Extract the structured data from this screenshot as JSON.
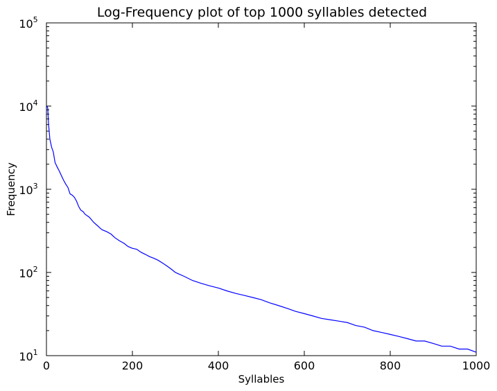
{
  "chart_data": {
    "type": "line",
    "title": "Log-Frequency plot of top 1000 syllables detected",
    "xlabel": "Syllables",
    "ylabel": "Frequency",
    "xlim": [
      0,
      1000
    ],
    "ylim": [
      10,
      100000
    ],
    "yscale": "log",
    "grid": false,
    "legend": "none",
    "line_color": "#0000ff",
    "x_ticks": [
      0,
      200,
      400,
      600,
      800,
      1000
    ],
    "y_ticks": [
      {
        "value": 10,
        "base": "10",
        "exp": "1"
      },
      {
        "value": 100,
        "base": "10",
        "exp": "2"
      },
      {
        "value": 1000,
        "base": "10",
        "exp": "3"
      },
      {
        "value": 10000,
        "base": "10",
        "exp": "4"
      },
      {
        "value": 100000,
        "base": "10",
        "exp": "5"
      }
    ],
    "series": [
      {
        "x": [
          1,
          3,
          5,
          8,
          12,
          16,
          20,
          25,
          30,
          35,
          40,
          45,
          50,
          55,
          60,
          65,
          70,
          75,
          80,
          85,
          90,
          95,
          100,
          110,
          120,
          125,
          130,
          140,
          150,
          160,
          170,
          180,
          190,
          200,
          210,
          220,
          230,
          240,
          250,
          260,
          270,
          280,
          290,
          300,
          320,
          340,
          360,
          380,
          400,
          420,
          440,
          460,
          480,
          500,
          520,
          540,
          560,
          580,
          600,
          620,
          640,
          660,
          680,
          700,
          720,
          740,
          760,
          780,
          800,
          820,
          840,
          860,
          880,
          900,
          920,
          940,
          960,
          980,
          1000
        ],
        "y": [
          10000,
          9500,
          6000,
          4000,
          3200,
          2800,
          2100,
          1850,
          1650,
          1450,
          1280,
          1150,
          1050,
          880,
          850,
          800,
          720,
          620,
          560,
          540,
          500,
          480,
          460,
          400,
          360,
          340,
          325,
          310,
          290,
          260,
          240,
          225,
          205,
          195,
          190,
          175,
          165,
          155,
          148,
          140,
          130,
          120,
          110,
          100,
          90,
          80,
          74,
          69,
          65,
          60,
          56,
          53,
          50,
          47,
          43,
          40,
          37,
          34,
          32,
          30,
          28,
          27,
          26,
          25,
          23,
          22,
          20,
          19,
          18,
          17,
          16,
          15,
          15,
          14,
          13,
          13,
          12,
          12,
          11
        ]
      }
    ]
  }
}
